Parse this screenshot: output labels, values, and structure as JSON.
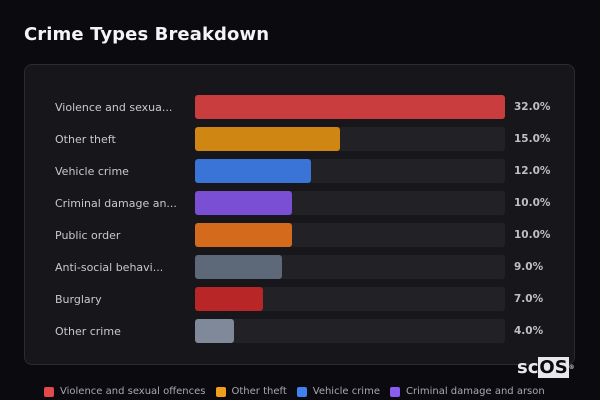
{
  "header": {
    "title": "Crime Types Breakdown"
  },
  "chart_data": {
    "type": "bar",
    "orientation": "horizontal",
    "title": "Crime Types Breakdown",
    "categories": [
      "Violence and sexual offences",
      "Other theft",
      "Vehicle crime",
      "Criminal damage and arson",
      "Public order",
      "Anti-social behaviour",
      "Burglary",
      "Other crime"
    ],
    "display_labels": [
      "Violence and sexua...",
      "Other theft",
      "Vehicle crime",
      "Criminal damage an...",
      "Public order",
      "Anti-social behavi...",
      "Burglary",
      "Other crime"
    ],
    "values": [
      32.0,
      15.0,
      12.0,
      10.0,
      10.0,
      9.0,
      7.0,
      4.0
    ],
    "value_labels": [
      "32.0%",
      "15.0%",
      "12.0%",
      "10.0%",
      "10.0%",
      "9.0%",
      "7.0%",
      "4.0%"
    ],
    "colors": [
      "#c93d3f",
      "#cf8612",
      "#3a74d6",
      "#7b4fd4",
      "#d46a1c",
      "#5d6878",
      "#b82628",
      "#7f8999"
    ],
    "unit": "%",
    "xlabel": "",
    "ylabel": "",
    "grid": false,
    "legend_position": "bottom"
  },
  "legend": {
    "items": [
      {
        "label": "Violence and sexual offences",
        "color": "#e04a4c"
      },
      {
        "label": "Other theft",
        "color": "#f0a01c"
      },
      {
        "label": "Vehicle crime",
        "color": "#3f82ee"
      },
      {
        "label": "Criminal damage and arson",
        "color": "#8a5cf0"
      }
    ]
  },
  "branding": {
    "logo_sc": "sc",
    "logo_os": "OS",
    "logo_mark": "®"
  }
}
